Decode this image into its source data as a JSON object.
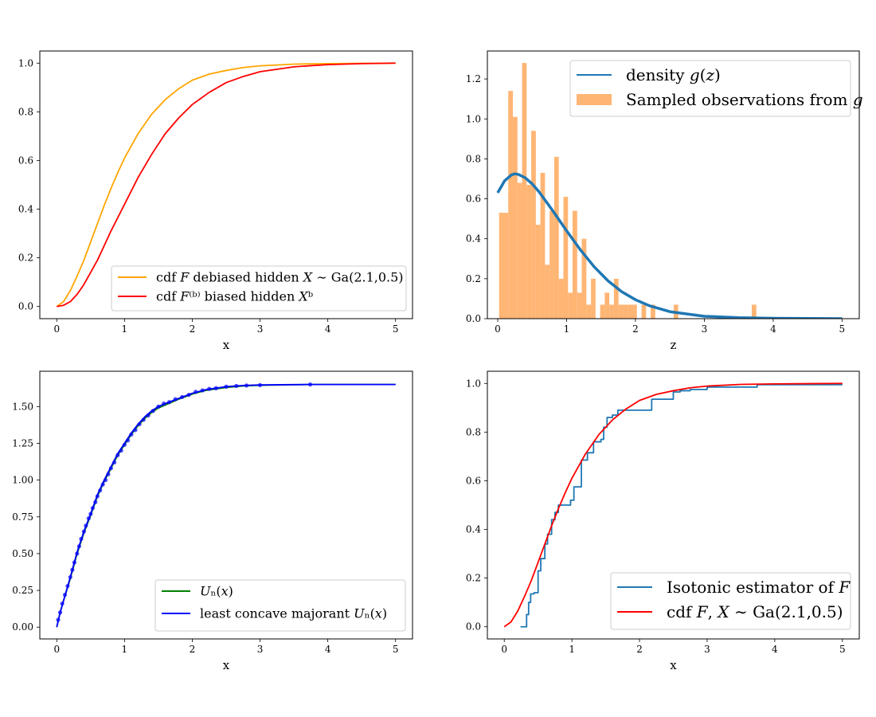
{
  "colors": {
    "orange": "#ffa500",
    "red": "#ff0000",
    "steel": "#1f77b4",
    "hist": "#ffb574",
    "green": "#008000",
    "blue": "#0000ff"
  },
  "chart_data": [
    {
      "id": "p1",
      "type": "line",
      "title": "",
      "xlabel": "x",
      "ylabel": "",
      "xlim": [
        -0.25,
        5.25
      ],
      "ylim": [
        -0.05,
        1.05
      ],
      "xticks": [
        0,
        1,
        2,
        3,
        4,
        5
      ],
      "yticks": [
        0.0,
        0.2,
        0.4,
        0.6,
        0.8,
        1.0
      ],
      "ytick_labels": [
        "0.0",
        "0.2",
        "0.4",
        "0.6",
        "0.8",
        "1.0"
      ],
      "legend_position": "lower-right",
      "series": [
        {
          "name": "cdf F debiased hidden X ~ Ga(2.1,0.5)",
          "legend_label": "cdf 𝐹 debiased hidden 𝑋 ∼ Ga(2.1,0.5)",
          "color": "orange",
          "x": [
            0,
            0.1,
            0.2,
            0.3,
            0.4,
            0.5,
            0.6,
            0.7,
            0.8,
            0.9,
            1.0,
            1.2,
            1.4,
            1.6,
            1.8,
            2.0,
            2.25,
            2.5,
            2.75,
            3.0,
            3.5,
            4.0,
            4.5,
            5.0
          ],
          "y": [
            0,
            0.02,
            0.065,
            0.125,
            0.19,
            0.265,
            0.34,
            0.415,
            0.485,
            0.55,
            0.61,
            0.71,
            0.79,
            0.85,
            0.895,
            0.93,
            0.955,
            0.97,
            0.982,
            0.989,
            0.996,
            0.998,
            0.999,
            1.0
          ]
        },
        {
          "name": "cdf F^(b) biased hidden X^b",
          "legend_label": "cdf 𝐹⁽ᵇ⁾ biased hidden 𝑋ᵇ",
          "color": "red",
          "x": [
            0,
            0.1,
            0.2,
            0.3,
            0.4,
            0.5,
            0.6,
            0.7,
            0.8,
            0.9,
            1.0,
            1.2,
            1.4,
            1.6,
            1.8,
            2.0,
            2.25,
            2.5,
            2.75,
            3.0,
            3.5,
            4.0,
            4.5,
            5.0
          ],
          "y": [
            0,
            0.005,
            0.02,
            0.05,
            0.09,
            0.14,
            0.19,
            0.25,
            0.31,
            0.365,
            0.42,
            0.53,
            0.625,
            0.71,
            0.775,
            0.83,
            0.88,
            0.92,
            0.945,
            0.965,
            0.985,
            0.994,
            0.998,
            1.0
          ]
        }
      ]
    },
    {
      "id": "p2",
      "type": "bar",
      "title": "",
      "xlabel": "z",
      "ylabel": "",
      "xlim": [
        -0.15,
        5.25
      ],
      "ylim": [
        0,
        1.34
      ],
      "xticks": [
        0,
        1,
        2,
        3,
        4,
        5
      ],
      "yticks": [
        0.0,
        0.2,
        0.4,
        0.6,
        0.8,
        1.0,
        1.2
      ],
      "ytick_labels": [
        "0.0",
        "0.2",
        "0.4",
        "0.6",
        "0.8",
        "1.0",
        "1.2"
      ],
      "legend_position": "top-right",
      "hist_bin_width": 0.0667,
      "hist_start": 0.02,
      "hist_values": [
        0.53,
        0.53,
        1.14,
        1.01,
        0.68,
        1.28,
        0.67,
        0.94,
        0.47,
        0.73,
        0.27,
        0.54,
        0.81,
        0.2,
        0.61,
        0.13,
        0.54,
        0.13,
        0.4,
        0.07,
        0.2,
        0.0,
        0.07,
        0.13,
        0.07,
        0.2,
        0.07,
        0.07,
        0.07,
        0.07,
        0.0,
        0.07,
        0.0,
        0.07,
        0.0,
        0.0,
        0.0,
        0.0,
        0.07,
        0.0,
        0.0,
        0.0,
        0.0,
        0.0,
        0.0,
        0.0,
        0.0,
        0.0,
        0.0,
        0.0,
        0.0,
        0.0,
        0.0,
        0.0,
        0.0,
        0.07
      ],
      "series": [
        {
          "name": "density g(z)",
          "legend_label": "density 𝑔(𝑧)",
          "color": "steel",
          "x": [
            0,
            0.1,
            0.2,
            0.25,
            0.3,
            0.4,
            0.5,
            0.6,
            0.8,
            1.0,
            1.2,
            1.4,
            1.6,
            1.8,
            2.0,
            2.2,
            2.5,
            3.0,
            3.5,
            4.0,
            4.5,
            5.0
          ],
          "y": [
            0.63,
            0.69,
            0.72,
            0.725,
            0.722,
            0.705,
            0.675,
            0.635,
            0.54,
            0.44,
            0.345,
            0.26,
            0.19,
            0.135,
            0.095,
            0.065,
            0.035,
            0.012,
            0.005,
            0.002,
            0.001,
            0.0
          ]
        },
        {
          "name": "Sampled observations from g",
          "legend_label": "Sampled observations from 𝑔",
          "color": "hist"
        }
      ]
    },
    {
      "id": "p3",
      "type": "line",
      "title": "",
      "xlabel": "x",
      "ylabel": "",
      "xlim": [
        -0.25,
        5.25
      ],
      "ylim": [
        -0.08,
        1.74
      ],
      "xticks": [
        0,
        1,
        2,
        3,
        4,
        5
      ],
      "yticks": [
        0.0,
        0.25,
        0.5,
        0.75,
        1.0,
        1.25,
        1.5
      ],
      "ytick_labels": [
        "0.00",
        "0.25",
        "0.50",
        "0.75",
        "1.00",
        "1.25",
        "1.50"
      ],
      "legend_position": "lower-right",
      "series": [
        {
          "name": "U_n(x)",
          "legend_label": "𝑈ₙ(𝑥)",
          "color": "green",
          "x": [
            0,
            0.05,
            0.1,
            0.2,
            0.3,
            0.4,
            0.5,
            0.6,
            0.7,
            0.8,
            0.9,
            1.0,
            1.1,
            1.2,
            1.3,
            1.4,
            1.5,
            1.6,
            1.8,
            2.0,
            2.2,
            2.5,
            2.75,
            3.0,
            3.74,
            5.0
          ],
          "y": [
            0,
            0.1,
            0.18,
            0.33,
            0.5,
            0.64,
            0.76,
            0.89,
            0.99,
            1.08,
            1.17,
            1.24,
            1.31,
            1.37,
            1.42,
            1.46,
            1.49,
            1.51,
            1.55,
            1.585,
            1.61,
            1.63,
            1.64,
            1.645,
            1.65,
            1.65
          ]
        },
        {
          "name": "least concave majorant U_n(x)",
          "legend_label": "least concave majorant 𝑈ₙ(𝑥)",
          "color": "blue",
          "x": [
            0,
            0.05,
            0.1,
            0.2,
            0.3,
            0.4,
            0.5,
            0.6,
            0.7,
            0.8,
            0.9,
            1.0,
            1.1,
            1.2,
            1.3,
            1.4,
            1.5,
            1.6,
            1.8,
            2.0,
            2.2,
            2.5,
            2.75,
            3.0,
            3.74,
            5.0
          ],
          "y": [
            0,
            0.1,
            0.18,
            0.34,
            0.51,
            0.65,
            0.77,
            0.9,
            1.0,
            1.09,
            1.18,
            1.25,
            1.32,
            1.38,
            1.43,
            1.47,
            1.5,
            1.52,
            1.555,
            1.59,
            1.615,
            1.635,
            1.643,
            1.647,
            1.65,
            1.65
          ]
        }
      ],
      "markers": {
        "x": [
          0.02,
          0.05,
          0.08,
          0.12,
          0.16,
          0.2,
          0.23,
          0.26,
          0.3,
          0.33,
          0.36,
          0.4,
          0.43,
          0.47,
          0.5,
          0.53,
          0.57,
          0.6,
          0.64,
          0.68,
          0.72,
          0.76,
          0.8,
          0.85,
          0.9,
          0.95,
          1.0,
          1.05,
          1.1,
          1.16,
          1.22,
          1.28,
          1.35,
          1.42,
          1.5,
          1.58,
          1.66,
          1.75,
          1.85,
          1.95,
          2.05,
          2.15,
          2.25,
          2.35,
          2.5,
          2.65,
          2.8,
          3.0,
          3.74
        ],
        "y": [
          0.05,
          0.1,
          0.16,
          0.22,
          0.28,
          0.34,
          0.39,
          0.44,
          0.5,
          0.55,
          0.6,
          0.65,
          0.69,
          0.74,
          0.77,
          0.81,
          0.85,
          0.89,
          0.93,
          0.97,
          1.0,
          1.04,
          1.08,
          1.12,
          1.17,
          1.2,
          1.24,
          1.27,
          1.31,
          1.34,
          1.38,
          1.41,
          1.44,
          1.47,
          1.5,
          1.52,
          1.53,
          1.55,
          1.565,
          1.58,
          1.6,
          1.61,
          1.62,
          1.625,
          1.635,
          1.64,
          1.643,
          1.646,
          1.65
        ]
      }
    },
    {
      "id": "p4",
      "type": "line",
      "title": "",
      "xlabel": "x",
      "ylabel": "",
      "xlim": [
        -0.25,
        5.25
      ],
      "ylim": [
        -0.05,
        1.05
      ],
      "xticks": [
        0,
        1,
        2,
        3,
        4,
        5
      ],
      "yticks": [
        0.0,
        0.2,
        0.4,
        0.6,
        0.8,
        1.0
      ],
      "ytick_labels": [
        "0.0",
        "0.2",
        "0.4",
        "0.6",
        "0.8",
        "1.0"
      ],
      "legend_position": "lower-right",
      "series": [
        {
          "name": "Isotonic estimator of F",
          "legend_label": "Isotonic estimator of 𝐹",
          "color": "steel",
          "step": true,
          "x": [
            0.24,
            0.33,
            0.36,
            0.39,
            0.44,
            0.5,
            0.54,
            0.6,
            0.64,
            0.7,
            0.75,
            0.8,
            0.98,
            1.03,
            1.14,
            1.23,
            1.32,
            1.43,
            1.47,
            1.52,
            1.6,
            1.68,
            2.18,
            2.5,
            2.6,
            2.75,
            3.0,
            3.74,
            5.0
          ],
          "y": [
            0.0,
            0.05,
            0.1,
            0.135,
            0.14,
            0.23,
            0.28,
            0.34,
            0.38,
            0.44,
            0.47,
            0.5,
            0.52,
            0.575,
            0.685,
            0.715,
            0.76,
            0.77,
            0.82,
            0.86,
            0.87,
            0.89,
            0.935,
            0.965,
            0.97,
            0.975,
            0.985,
            0.995,
            0.995
          ]
        },
        {
          "name": "cdf F, X ~ Ga(2.1,0.5)",
          "legend_label": "cdf 𝐹, 𝑋 ∼ Ga(2.1,0.5)",
          "color": "red",
          "x": [
            0,
            0.1,
            0.2,
            0.3,
            0.4,
            0.5,
            0.6,
            0.7,
            0.8,
            0.9,
            1.0,
            1.2,
            1.4,
            1.6,
            1.8,
            2.0,
            2.25,
            2.5,
            2.75,
            3.0,
            3.5,
            4.0,
            4.5,
            5.0
          ],
          "y": [
            0,
            0.02,
            0.065,
            0.125,
            0.19,
            0.265,
            0.34,
            0.415,
            0.485,
            0.55,
            0.61,
            0.71,
            0.79,
            0.85,
            0.895,
            0.93,
            0.955,
            0.97,
            0.982,
            0.989,
            0.996,
            0.998,
            0.999,
            1.0
          ]
        }
      ]
    }
  ]
}
